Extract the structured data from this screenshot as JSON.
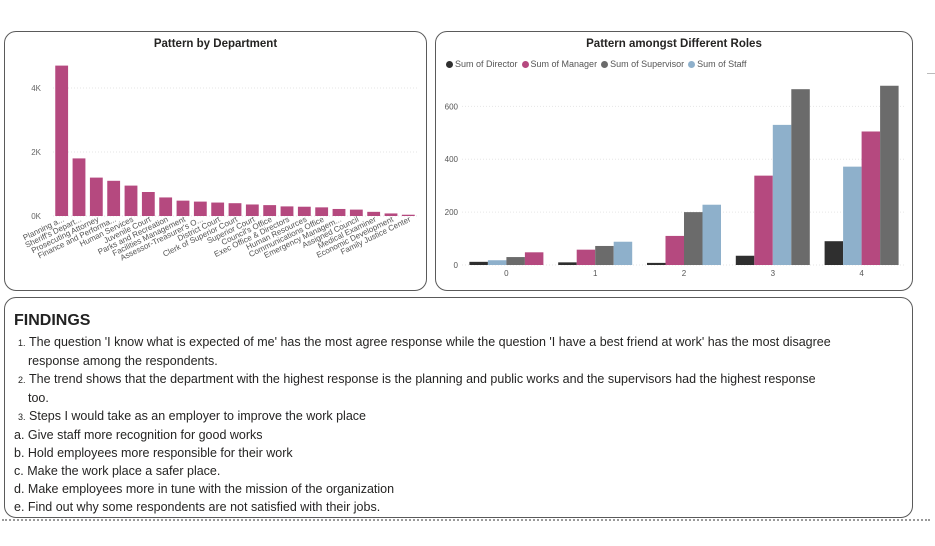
{
  "dept_chart": {
    "chart_data": {
      "type": "bar",
      "title": "Pattern by Department",
      "color": "#B5497F",
      "categories": [
        "Planning a...",
        "Sheriff's Depart...",
        "Prosecuting Attorney",
        "Finance and Performa...",
        "Human Services",
        "Juvenile Court",
        "Parks and Recreation",
        "Facilities Management",
        "Assessor-Treasurer's O...",
        "District Court",
        "Clerk of Superior Court",
        "Superior Court",
        "Council's Office",
        "Exec Office & Directors",
        "Human Resources",
        "Communications Office",
        "Emergency Managem...",
        "Assigned Council",
        "Medical Examiner",
        "Economic Development",
        "Family Justice Center"
      ],
      "values": [
        4700,
        1800,
        1200,
        1100,
        950,
        750,
        580,
        480,
        450,
        420,
        400,
        360,
        340,
        300,
        290,
        270,
        220,
        200,
        130,
        80,
        40
      ],
      "y_ticks": [
        0,
        2000,
        4000
      ],
      "y_tick_labels": [
        "0K",
        "2K",
        "4K"
      ],
      "ylim": [
        0,
        5000
      ],
      "grid": true
    }
  },
  "roles_chart": {
    "chart_data": {
      "type": "bar",
      "title": "Pattern amongst Different Roles",
      "legend_position": "top-left",
      "categories": [
        "0",
        "1",
        "2",
        "3",
        "4"
      ],
      "series": [
        {
          "name": "Sum of Director",
          "color": "#2F2F2F",
          "values": [
            12,
            10,
            8,
            35,
            90
          ]
        },
        {
          "name": "Sum of Manager",
          "color": "#B5497F",
          "values": [
            48,
            58,
            110,
            338,
            505
          ]
        },
        {
          "name": "Sum of Supervisor",
          "color": "#6B6B6B",
          "values": [
            30,
            72,
            200,
            665,
            678
          ]
        },
        {
          "name": "Sum of Staff",
          "color": "#8EB0CB",
          "values": [
            18,
            88,
            228,
            530,
            372
          ]
        }
      ],
      "bar_order": [
        [
          "Sum of Director",
          "Sum of Staff",
          "Sum of Supervisor",
          "Sum of Manager"
        ],
        [
          "Sum of Director",
          "Sum of Manager",
          "Sum of Supervisor",
          "Sum of Staff"
        ],
        [
          "Sum of Director",
          "Sum of Manager",
          "Sum of Supervisor",
          "Sum of Staff"
        ],
        [
          "Sum of Director",
          "Sum of Manager",
          "Sum of Staff",
          "Sum of Supervisor"
        ],
        [
          "Sum of Director",
          "Sum of Staff",
          "Sum of Manager",
          "Sum of Supervisor"
        ]
      ],
      "y_ticks": [
        0,
        200,
        400,
        600
      ],
      "ylim": [
        0,
        730
      ],
      "grid": true
    }
  },
  "findings": {
    "title": "FINDINGS",
    "items": [
      {
        "marker": "1.",
        "text": "The question 'I know what is expected of me' has the most agree response while the question 'I have a best friend at work' has the most disagree",
        "cont": "response among the respondents."
      },
      {
        "marker": "2.",
        "text": "The trend shows that the department with the highest response is the planning and public works and the supervisors had the highest response",
        "cont": "too."
      },
      {
        "marker": "3.",
        "text": "Steps I would take as an employer to improve the work place",
        "cont": ""
      },
      {
        "marker": "a.",
        "text": "Give staff more recognition for good works",
        "cont": ""
      },
      {
        "marker": "b.",
        "text": "Hold employees more responsible for their work",
        "cont": ""
      },
      {
        "marker": "c.",
        "text": "Make the work place a safer place.",
        "cont": ""
      },
      {
        "marker": "d.",
        "text": "Make employees more in tune with the mission of the organization",
        "cont": ""
      },
      {
        "marker": "e.",
        "text": "Find out why some respondents are not satisfied with their jobs.",
        "cont": ""
      }
    ]
  }
}
